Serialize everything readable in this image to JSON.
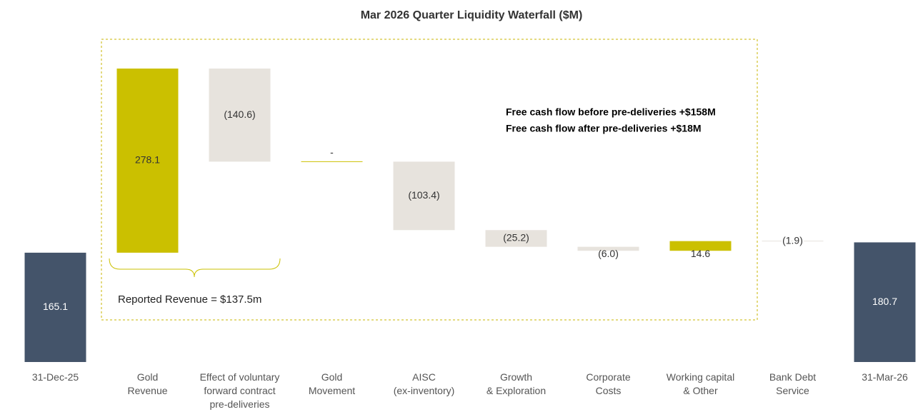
{
  "chart_data": {
    "type": "waterfall",
    "title": "Mar 2026 Quarter Liquidity Waterfall ($M)",
    "categories": [
      "31-Dec-25",
      "Gold\nRevenue",
      "Effect of voluntary\nforward contract\npre-deliveries",
      "Gold\nMovement",
      "AISC\n(ex-inventory)",
      "Growth\n& Exploration",
      "Corporate\nCosts",
      "Working capital\n& Other",
      "Bank Debt\nService",
      "31-Mar-26"
    ],
    "values": [
      165.1,
      278.1,
      -140.6,
      0,
      -103.4,
      -25.2,
      -6.0,
      14.6,
      -1.9,
      180.7
    ],
    "value_labels": [
      "165.1",
      "278.1",
      "(140.6)",
      "-",
      "(103.4)",
      "(25.2)",
      "(6.0)",
      "14.6",
      "(1.9)",
      "180.7"
    ],
    "totals": [
      true,
      false,
      false,
      false,
      false,
      false,
      false,
      false,
      false,
      true
    ],
    "colors": {
      "total": "#44546a",
      "increase": "#cbc000",
      "decrease": "#e7e3dd",
      "zero": "#cbc000"
    },
    "annotations": [
      "Free cash flow before pre-deliveries +$158M",
      "Free cash flow after pre-deliveries +$18M",
      "Reported Revenue = $137.5m"
    ]
  }
}
